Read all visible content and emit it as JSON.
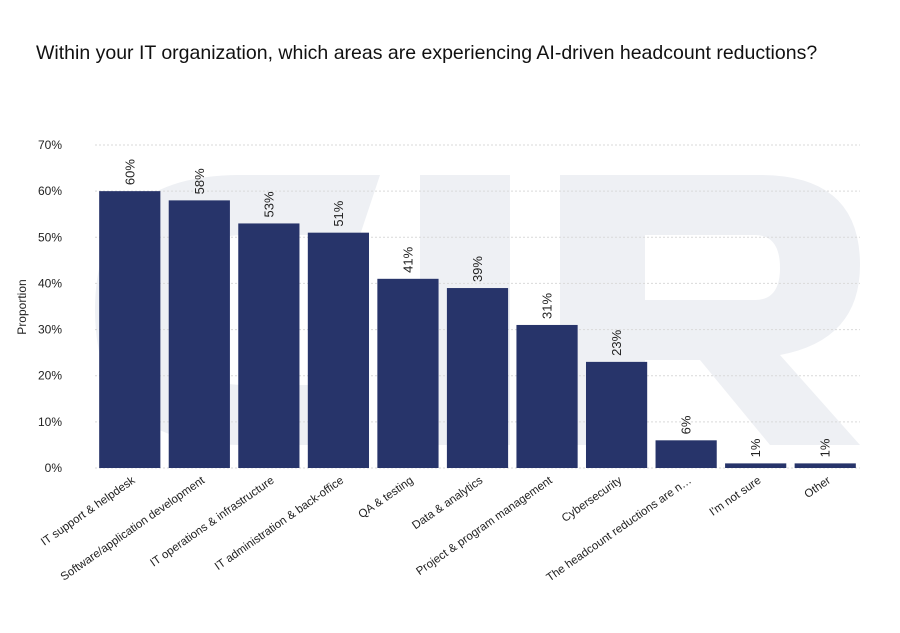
{
  "chart_data": {
    "type": "bar",
    "title": "Within your IT organization, which areas are experiencing AI-driven headcount reductions?",
    "ylabel": "Proportion",
    "xlabel": "",
    "ylim": [
      0,
      70
    ],
    "yticks": [
      "0%",
      "10%",
      "20%",
      "30%",
      "40%",
      "50%",
      "60%",
      "70%"
    ],
    "grid": true,
    "categories": [
      "IT support & helpdesk",
      "Software/application development",
      "IT operations & infrastructure",
      "IT administration & back-office",
      "QA & testing",
      "Data & analytics",
      "Project & program management",
      "Cybersecurity",
      "The headcount reductions are n…",
      "I'm not sure",
      "Other"
    ],
    "values": [
      60,
      58,
      53,
      51,
      41,
      39,
      31,
      23,
      6,
      1,
      1
    ],
    "value_labels": [
      "60%",
      "58%",
      "53%",
      "51%",
      "41%",
      "39%",
      "31%",
      "23%",
      "6%",
      "1%",
      "1%"
    ],
    "bar_color": "#27346a",
    "grid_color": "#d9d9d9",
    "watermark_color": "#eef0f4"
  }
}
